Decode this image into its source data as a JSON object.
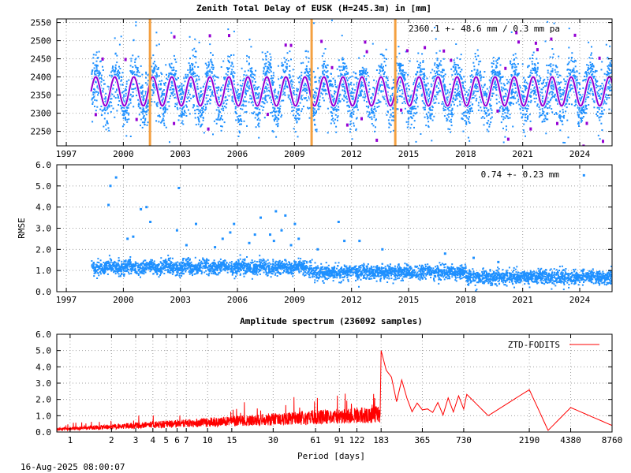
{
  "figure": {
    "timestamp": "16-Aug-2025 08:00:07"
  },
  "chart_data": [
    {
      "type": "scatter",
      "title": "Zenith Total Delay of EUSK (H=245.3m) in [mm]",
      "annotation": "2360.1 +-  48.6 mm /  0.3 mm pa",
      "xlabel": "",
      "ylabel": "",
      "xlim": [
        1996.5,
        2025.7
      ],
      "ylim": [
        2210,
        2560
      ],
      "x_ticks": [
        1997,
        2000,
        2003,
        2006,
        2009,
        2012,
        2015,
        2018,
        2021,
        2024
      ],
      "y_ticks": [
        2250,
        2300,
        2350,
        2400,
        2450,
        2500,
        2550
      ],
      "grid": true,
      "data_start": 1998.3,
      "data_end": 2025.7,
      "mean": 2360.1,
      "std": 48.6,
      "seasonal_amplitude": 40,
      "vertical_markers": [
        2001.4,
        2009.9,
        2014.3
      ],
      "colors": {
        "points": "#1e90ff",
        "model": "#9400d3",
        "marker": "#f4a040"
      }
    },
    {
      "type": "scatter",
      "title": "",
      "annotation": "0.74 +-  0.23 mm",
      "xlabel": "",
      "ylabel": "RMSE",
      "xlim": [
        1996.5,
        2025.7
      ],
      "ylim": [
        0,
        6
      ],
      "x_ticks": [
        1997,
        2000,
        2003,
        2006,
        2009,
        2012,
        2015,
        2018,
        2021,
        2024
      ],
      "y_ticks": [
        0.0,
        1.0,
        2.0,
        3.0,
        4.0,
        5.0,
        6.0
      ],
      "grid": true,
      "mean": 0.74,
      "std": 0.23,
      "outliers": [
        [
          1999.6,
          5.4
        ],
        [
          1999.3,
          5.0
        ],
        [
          2002.9,
          4.9
        ],
        [
          1999.2,
          4.1
        ],
        [
          2001.2,
          4.0
        ],
        [
          2000.9,
          3.9
        ],
        [
          2001.4,
          3.3
        ],
        [
          2003.8,
          3.2
        ],
        [
          2005.8,
          3.2
        ],
        [
          2007.2,
          3.5
        ],
        [
          2008.0,
          3.8
        ],
        [
          2008.5,
          3.6
        ],
        [
          2009.0,
          3.2
        ],
        [
          2011.3,
          3.3
        ],
        [
          2002.8,
          2.9
        ],
        [
          2005.6,
          2.8
        ],
        [
          2006.9,
          2.7
        ],
        [
          2007.7,
          2.7
        ],
        [
          2008.3,
          2.9
        ],
        [
          2000.5,
          2.6
        ],
        [
          2005.2,
          2.5
        ],
        [
          2006.6,
          2.3
        ],
        [
          2007.9,
          2.4
        ],
        [
          2009.2,
          2.5
        ],
        [
          2011.6,
          2.4
        ],
        [
          2012.4,
          2.4
        ],
        [
          2000.2,
          2.5
        ],
        [
          2003.3,
          2.2
        ],
        [
          2004.8,
          2.1
        ],
        [
          2008.8,
          2.2
        ],
        [
          2010.2,
          2.0
        ],
        [
          2013.6,
          2.0
        ],
        [
          2016.9,
          1.8
        ],
        [
          2018.4,
          1.6
        ],
        [
          2019.7,
          1.4
        ],
        [
          2024.2,
          5.5
        ]
      ],
      "colors": {
        "points": "#1e90ff"
      }
    },
    {
      "type": "line",
      "title": "Amplitude spectrum (236092 samples)",
      "xlabel": "Period [days]",
      "ylabel": "",
      "x_scale": "log",
      "xlim": [
        0.8,
        8760
      ],
      "ylim": [
        0,
        6
      ],
      "x_ticks": [
        1,
        2,
        3,
        4,
        5,
        6,
        7,
        10,
        15,
        30,
        61,
        91,
        122,
        183,
        365,
        730,
        2190,
        4380,
        8760
      ],
      "y_ticks": [
        0.0,
        1.0,
        2.0,
        3.0,
        4.0,
        5.0,
        6.0
      ],
      "grid": true,
      "legend": "top-right",
      "series": [
        {
          "name": "ZTD-FODITS",
          "color": "#ff0000",
          "x": [
            183,
            365,
            730,
            1100,
            2190,
            3000,
            4380,
            8760
          ],
          "values": [
            5.0,
            1.3,
            2.5,
            1.0,
            2.6,
            0.1,
            1.5,
            0.4
          ]
        }
      ]
    }
  ]
}
